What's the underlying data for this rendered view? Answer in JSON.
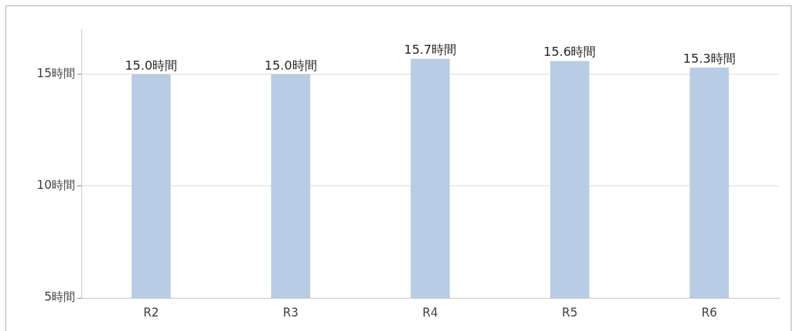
{
  "chart_data": {
    "type": "bar",
    "categories": [
      "R2",
      "R3",
      "R4",
      "R5",
      "R6"
    ],
    "values": [
      15.0,
      15.0,
      15.7,
      15.6,
      15.3
    ],
    "value_labels": [
      "15.0時間",
      "15.0時間",
      "15.7時間",
      "15.6時間",
      "15.3時間"
    ],
    "color": "#b8cce4",
    "ylim": [
      5,
      17
    ],
    "yticks": [
      {
        "value": 5,
        "label": "5時間"
      },
      {
        "value": 10,
        "label": "10時間"
      },
      {
        "value": 15,
        "label": "15時間"
      }
    ],
    "grid": "y",
    "legend": false
  }
}
